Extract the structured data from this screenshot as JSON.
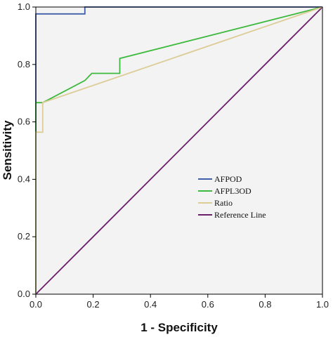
{
  "chart_data": {
    "type": "line",
    "title": "",
    "xlabel": "1 - Specificity",
    "ylabel": "Sensitivity",
    "xlim": [
      0,
      1
    ],
    "ylim": [
      0,
      1
    ],
    "xticks": [
      "0.0",
      "0.2",
      "0.4",
      "0.6",
      "0.8",
      "1.0"
    ],
    "yticks": [
      "0.0",
      "0.2",
      "0.4",
      "0.6",
      "0.8",
      "1.0"
    ],
    "grid": false,
    "background": "#f3f3f3",
    "legend_position": "center-right",
    "series": [
      {
        "name": "AFPOD",
        "color": "#3f5fa8",
        "points": [
          [
            0,
            0
          ],
          [
            0,
            0.976
          ],
          [
            0.171,
            0.976
          ],
          [
            0.171,
            1
          ],
          [
            1,
            1
          ]
        ]
      },
      {
        "name": "AFPL3OD",
        "color": "#3dba3d",
        "points": [
          [
            0,
            0
          ],
          [
            0,
            0.667
          ],
          [
            0.024,
            0.667
          ],
          [
            0.171,
            0.744
          ],
          [
            0.195,
            0.769
          ],
          [
            0.293,
            0.769
          ],
          [
            0.293,
            0.821
          ],
          [
            1,
            1
          ]
        ]
      },
      {
        "name": "Ratio",
        "color": "#dccc95",
        "points": [
          [
            0,
            0
          ],
          [
            0,
            0.564
          ],
          [
            0.024,
            0.564
          ],
          [
            0.024,
            0.667
          ],
          [
            1,
            1
          ]
        ]
      },
      {
        "name": "Reference Line",
        "color": "#6b1f6b",
        "points": [
          [
            0,
            0
          ],
          [
            1,
            1
          ]
        ]
      }
    ]
  }
}
